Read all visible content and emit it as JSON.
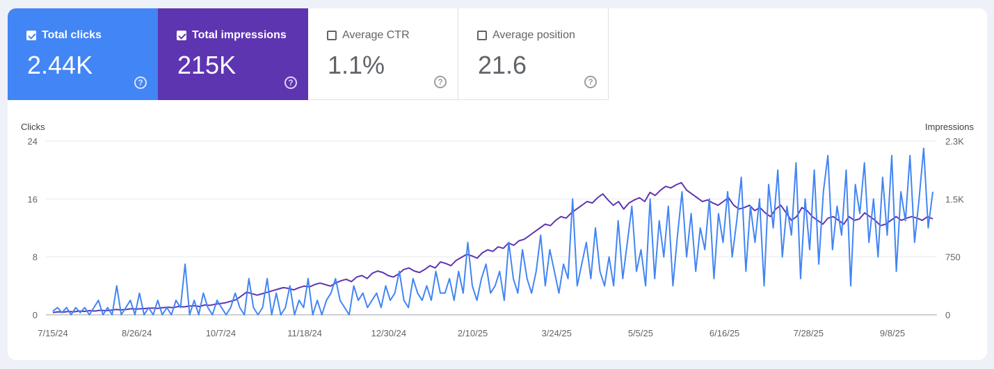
{
  "metrics": [
    {
      "label": "Total clicks",
      "value": "2.44K",
      "checked": true,
      "help_icon": "help-circle-icon"
    },
    {
      "label": "Total impressions",
      "value": "215K",
      "checked": true,
      "help_icon": "help-circle-icon"
    },
    {
      "label": "Average CTR",
      "value": "1.1%",
      "checked": false,
      "help_icon": "help-circle-icon"
    },
    {
      "label": "Average position",
      "value": "21.6",
      "checked": false,
      "help_icon": "help-circle-icon"
    }
  ],
  "colors": {
    "clicks": "#4285f4",
    "impressions": "#5e35b1",
    "grid": "#e8eaed",
    "axis": "#9aa0a6"
  },
  "chart_data": {
    "type": "line",
    "y_left_label": "Clicks",
    "y_right_label": "Impressions",
    "y_left_ticks": [
      "0",
      "8",
      "16",
      "24"
    ],
    "y_right_ticks": [
      "0",
      "750",
      "1.5K",
      "2.3K"
    ],
    "ylim_left": [
      0,
      24
    ],
    "ylim_right": [
      0,
      2300
    ],
    "x_ticks": [
      "7/15/24",
      "8/26/24",
      "10/7/24",
      "11/18/24",
      "12/30/24",
      "2/10/25",
      "3/24/25",
      "5/5/25",
      "6/16/25",
      "7/28/25",
      "9/8/25"
    ],
    "grid": true,
    "series": [
      {
        "name": "Clicks",
        "axis": "left",
        "values": [
          0.5,
          1,
          0.3,
          1,
          0,
          1,
          0.3,
          1,
          0,
          1,
          2,
          0,
          1,
          0,
          4,
          0,
          1,
          2,
          0,
          3,
          0,
          1,
          0,
          2,
          0,
          1,
          0,
          2,
          1,
          7,
          0,
          2,
          0,
          3,
          1,
          0,
          2,
          1,
          0,
          1,
          3,
          1,
          0,
          5,
          1,
          0,
          1,
          5,
          0,
          3,
          0,
          1,
          4,
          0,
          2,
          1,
          5,
          0,
          2,
          0,
          2,
          3,
          5,
          2,
          1,
          0,
          4,
          2,
          3,
          1,
          2,
          3,
          1,
          4,
          2,
          3,
          6,
          2,
          1,
          5,
          3,
          2,
          4,
          2,
          6,
          3,
          3,
          5,
          2,
          6,
          3,
          10,
          4,
          2,
          5,
          7,
          3,
          4,
          6,
          2,
          10,
          5,
          3,
          9,
          5,
          3,
          6,
          11,
          4,
          9,
          6,
          3,
          7,
          5,
          16,
          4,
          7,
          10,
          5,
          12,
          6,
          4,
          8,
          4,
          13,
          5,
          10,
          15,
          6,
          9,
          4,
          16,
          5,
          13,
          8,
          15,
          4,
          11,
          17,
          8,
          14,
          6,
          12,
          9,
          16,
          5,
          14,
          10,
          17,
          8,
          13,
          19,
          6,
          15,
          10,
          16,
          4,
          18,
          12,
          20,
          8,
          15,
          11,
          21,
          5,
          16,
          9,
          20,
          7,
          17,
          22,
          9,
          15,
          11,
          20,
          4,
          18,
          14,
          21,
          10,
          16,
          8,
          19,
          11,
          22,
          6,
          17,
          13,
          22,
          10,
          16,
          23,
          12,
          17
        ],
        "ylim": [
          0,
          24
        ]
      },
      {
        "name": "Impressions",
        "axis": "right",
        "values": [
          30,
          40,
          35,
          45,
          40,
          50,
          45,
          55,
          50,
          60,
          55,
          60,
          70,
          65,
          70,
          80,
          75,
          80,
          85,
          90,
          85,
          95,
          100,
          95,
          110,
          105,
          115,
          120,
          110,
          130,
          125,
          140,
          150,
          160,
          180,
          200,
          250,
          300,
          280,
          260,
          280,
          300,
          320,
          340,
          360,
          350,
          330,
          360,
          380,
          370,
          400,
          420,
          400,
          380,
          420,
          450,
          470,
          440,
          500,
          520,
          480,
          550,
          580,
          560,
          520,
          500,
          540,
          600,
          620,
          580,
          560,
          600,
          650,
          620,
          700,
          680,
          650,
          720,
          760,
          800,
          780,
          750,
          820,
          860,
          840,
          900,
          880,
          950,
          920,
          980,
          1000,
          1050,
          1100,
          1150,
          1200,
          1180,
          1250,
          1300,
          1280,
          1350,
          1400,
          1450,
          1500,
          1480,
          1550,
          1600,
          1520,
          1450,
          1500,
          1400,
          1480,
          1520,
          1550,
          1500,
          1620,
          1580,
          1650,
          1700,
          1680,
          1720,
          1750,
          1650,
          1600,
          1550,
          1500,
          1520,
          1480,
          1450,
          1500,
          1550,
          1450,
          1400,
          1420,
          1450,
          1380,
          1420,
          1350,
          1300,
          1400,
          1450,
          1350,
          1250,
          1300,
          1420,
          1380,
          1300,
          1250,
          1200,
          1280,
          1300,
          1250,
          1200,
          1300,
          1250,
          1270,
          1350,
          1300,
          1250,
          1180,
          1200,
          1250,
          1300,
          1250,
          1280,
          1300,
          1280,
          1250,
          1300,
          1270
        ],
        "ylim": [
          0,
          2300
        ]
      }
    ]
  }
}
